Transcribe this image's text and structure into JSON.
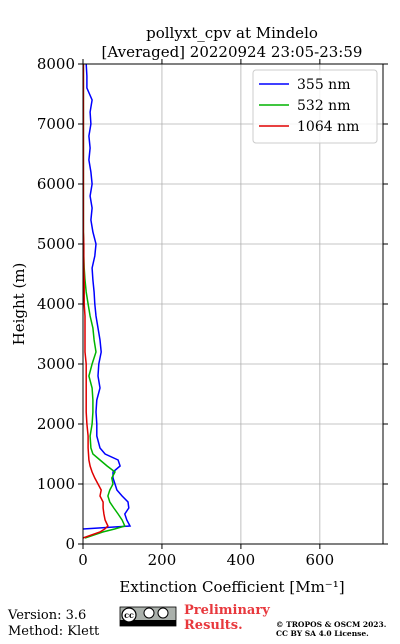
{
  "chart_data": {
    "type": "profile",
    "title": "pollyxt_cpv at Mindelo",
    "subtitle": "[Averaged] 20220924 23:05-23:59",
    "xlabel": "Extinction Coefficient [Mm⁻¹]",
    "ylabel": "Height (m)",
    "y": [
      100,
      200,
      250,
      300,
      400,
      500,
      600,
      700,
      800,
      900,
      1000,
      1100,
      1200,
      1300,
      1400,
      1500,
      1600,
      1800,
      2000,
      2200,
      2400,
      2600,
      2800,
      3000,
      3200,
      3400,
      3600,
      3800,
      4000,
      4200,
      4400,
      4600,
      4800,
      5000,
      5200,
      5400,
      5600,
      5800,
      6000,
      6200,
      6400,
      6600,
      6800,
      7000,
      7200,
      7400,
      7600,
      7800,
      8000
    ],
    "series": [
      {
        "name": "355 nm",
        "color": "#0000ff",
        "values": [
          null,
          null,
          0,
          119,
          111,
          106,
          116,
          114,
          99,
          86,
          81,
          76,
          76,
          94,
          89,
          56,
          43,
          35,
          35,
          33,
          35,
          43,
          38,
          40,
          46,
          43,
          38,
          33,
          30,
          28,
          25,
          23,
          30,
          33,
          25,
          20,
          23,
          18,
          23,
          20,
          15,
          18,
          15,
          20,
          18,
          23,
          10,
          10,
          8
        ]
      },
      {
        "name": "532 nm",
        "color": "#00b400",
        "values": [
          5,
          50,
          80,
          106,
          99,
          89,
          78,
          68,
          63,
          68,
          76,
          73,
          81,
          61,
          43,
          25,
          20,
          18,
          23,
          25,
          25,
          23,
          15,
          23,
          33,
          28,
          25,
          18,
          13,
          8,
          5,
          3,
          2,
          2,
          1,
          1,
          1,
          1,
          1,
          1,
          1,
          1,
          1,
          1,
          1,
          1,
          1,
          1,
          1
        ]
      },
      {
        "name": "1064 nm",
        "color": "#e00000",
        "values": [
          0,
          43,
          55,
          63,
          56,
          53,
          51,
          51,
          43,
          46,
          38,
          30,
          23,
          18,
          15,
          14,
          13,
          13,
          10,
          8,
          8,
          8,
          8,
          8,
          5,
          5,
          5,
          5,
          3,
          3,
          3,
          2,
          2,
          2,
          1,
          1,
          1,
          1,
          1,
          1,
          1,
          1,
          1,
          1,
          1,
          1,
          1,
          1,
          1
        ]
      }
    ],
    "xlim": [
      0,
      760
    ],
    "xticks": [
      0,
      200,
      400,
      600
    ],
    "ylim": [
      0,
      8000
    ],
    "yticks": [
      0,
      1000,
      2000,
      3000,
      4000,
      5000,
      6000,
      7000,
      8000
    ],
    "grid": true,
    "legend": "upper right"
  },
  "footer": {
    "version": "Version: 3.6",
    "method": "Method: Klett",
    "badge": "cc",
    "notice": "Preliminary Results.",
    "copyright": [
      "© TROPOS & OSCM 2023.",
      "CC BY SA 4.0 License."
    ]
  }
}
